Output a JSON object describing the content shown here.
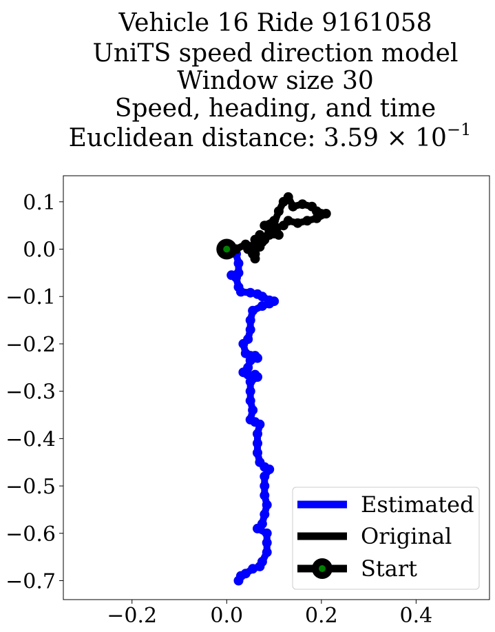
{
  "chart_data": {
    "type": "line",
    "title_lines": [
      "Vehicle 16 Ride 9161058",
      "UniTS speed direction model",
      "Window size 30",
      "Speed, heading, and time",
      "Euclidean distance: 3.59 × 10"
    ],
    "title_superscript": "−1",
    "xlim": [
      -0.345,
      0.555
    ],
    "ylim": [
      -0.74,
      0.155
    ],
    "x_ticks": [
      -0.2,
      0.0,
      0.2,
      0.4
    ],
    "x_tick_labels": [
      "−0.2",
      "0.0",
      "0.2",
      "0.4"
    ],
    "y_ticks": [
      0.1,
      0.0,
      -0.1,
      -0.2,
      -0.3,
      -0.4,
      -0.5,
      -0.6,
      -0.7
    ],
    "y_tick_labels": [
      "0.1",
      "0.0",
      "−0.1",
      "−0.2",
      "−0.3",
      "−0.4",
      "−0.5",
      "−0.6",
      "−0.7"
    ],
    "grid": false,
    "legend_position": "bottom-right",
    "series": [
      {
        "name": "Estimated",
        "color": "#0000ff",
        "points": [
          [
            0.0,
            0.0
          ],
          [
            0.02,
            -0.01
          ],
          [
            0.025,
            -0.03
          ],
          [
            0.025,
            -0.05
          ],
          [
            0.01,
            -0.055
          ],
          [
            0.02,
            -0.06
          ],
          [
            0.025,
            -0.08
          ],
          [
            0.03,
            -0.09
          ],
          [
            0.05,
            -0.092
          ],
          [
            0.065,
            -0.095
          ],
          [
            0.075,
            -0.1
          ],
          [
            0.09,
            -0.108
          ],
          [
            0.1,
            -0.11
          ],
          [
            0.09,
            -0.115
          ],
          [
            0.075,
            -0.12
          ],
          [
            0.055,
            -0.13
          ],
          [
            0.05,
            -0.15
          ],
          [
            0.05,
            -0.17
          ],
          [
            0.045,
            -0.19
          ],
          [
            0.035,
            -0.2
          ],
          [
            0.04,
            -0.22
          ],
          [
            0.05,
            -0.225
          ],
          [
            0.06,
            -0.225
          ],
          [
            0.065,
            -0.23
          ],
          [
            0.05,
            -0.235
          ],
          [
            0.045,
            -0.25
          ],
          [
            0.035,
            -0.26
          ],
          [
            0.045,
            -0.265
          ],
          [
            0.06,
            -0.265
          ],
          [
            0.065,
            -0.27
          ],
          [
            0.05,
            -0.28
          ],
          [
            0.05,
            -0.3
          ],
          [
            0.05,
            -0.32
          ],
          [
            0.055,
            -0.34
          ],
          [
            0.05,
            -0.36
          ],
          [
            0.06,
            -0.365
          ],
          [
            0.07,
            -0.37
          ],
          [
            0.065,
            -0.39
          ],
          [
            0.065,
            -0.41
          ],
          [
            0.065,
            -0.43
          ],
          [
            0.07,
            -0.45
          ],
          [
            0.08,
            -0.46
          ],
          [
            0.09,
            -0.465
          ],
          [
            0.08,
            -0.48
          ],
          [
            0.08,
            -0.5
          ],
          [
            0.08,
            -0.52
          ],
          [
            0.085,
            -0.54
          ],
          [
            0.08,
            -0.56
          ],
          [
            0.075,
            -0.58
          ],
          [
            0.065,
            -0.59
          ],
          [
            0.085,
            -0.6
          ],
          [
            0.085,
            -0.62
          ],
          [
            0.085,
            -0.64
          ],
          [
            0.075,
            -0.66
          ],
          [
            0.07,
            -0.67
          ],
          [
            0.055,
            -0.675
          ],
          [
            0.04,
            -0.685
          ],
          [
            0.03,
            -0.69
          ],
          [
            0.025,
            -0.7
          ]
        ]
      },
      {
        "name": "Original",
        "color": "#000000",
        "points": [
          [
            0.0,
            0.0
          ],
          [
            0.02,
            0.0
          ],
          [
            0.04,
            0.01
          ],
          [
            0.05,
            0.005
          ],
          [
            0.055,
            -0.005
          ],
          [
            0.065,
            0.01
          ],
          [
            0.07,
            0.005
          ],
          [
            0.06,
            0.02
          ],
          [
            0.07,
            0.03
          ],
          [
            0.08,
            0.02
          ],
          [
            0.09,
            0.04
          ],
          [
            0.08,
            0.05
          ],
          [
            0.1,
            0.06
          ],
          [
            0.095,
            0.04
          ],
          [
            0.11,
            0.08
          ],
          [
            0.12,
            0.1
          ],
          [
            0.13,
            0.11
          ],
          [
            0.14,
            0.09
          ],
          [
            0.16,
            0.095
          ],
          [
            0.18,
            0.09
          ],
          [
            0.19,
            0.08
          ],
          [
            0.21,
            0.075
          ],
          [
            0.19,
            0.065
          ],
          [
            0.17,
            0.06
          ],
          [
            0.15,
            0.055
          ],
          [
            0.13,
            0.06
          ],
          [
            0.12,
            0.05
          ],
          [
            0.105,
            0.045
          ],
          [
            0.11,
            0.03
          ],
          [
            0.09,
            0.03
          ],
          [
            0.075,
            0.015
          ],
          [
            0.065,
            0.005
          ],
          [
            0.06,
            -0.01
          ],
          [
            0.06,
            -0.02
          ],
          [
            0.055,
            -0.01
          ],
          [
            0.045,
            0.0
          ]
        ]
      }
    ],
    "start": {
      "name": "Start",
      "x": 0.0,
      "y": 0.0,
      "outer_color": "#000000",
      "inner_color": "#008000"
    },
    "legend": [
      "Estimated",
      "Original",
      "Start"
    ]
  }
}
